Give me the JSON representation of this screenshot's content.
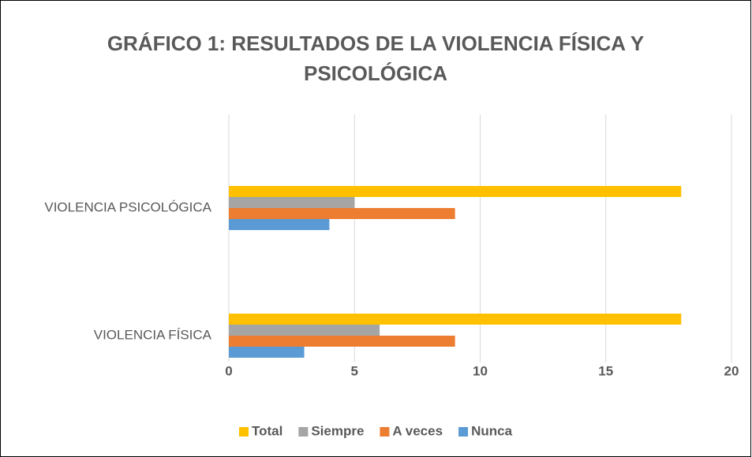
{
  "chart_data": {
    "type": "hbar",
    "title": "GRÁFICO 1: RESULTADOS DE LA VIOLENCIA FÍSICA Y PSICOLÓGICA",
    "categories": [
      "VIOLENCIA FÍSICA",
      "VIOLENCIA PSICOLÓGICA"
    ],
    "series": [
      {
        "name": "Nunca",
        "color": "#5b9bd5",
        "values": [
          3,
          4
        ]
      },
      {
        "name": "A veces",
        "color": "#ed7d31",
        "values": [
          9,
          9
        ]
      },
      {
        "name": "Siempre",
        "color": "#a5a5a5",
        "values": [
          6,
          5
        ]
      },
      {
        "name": "Total",
        "color": "#ffc000",
        "values": [
          18,
          18
        ]
      }
    ],
    "xlim": [
      0,
      20
    ],
    "xticks": [
      0,
      5,
      10,
      15,
      20
    ],
    "grid": true,
    "legend": "bottom"
  }
}
